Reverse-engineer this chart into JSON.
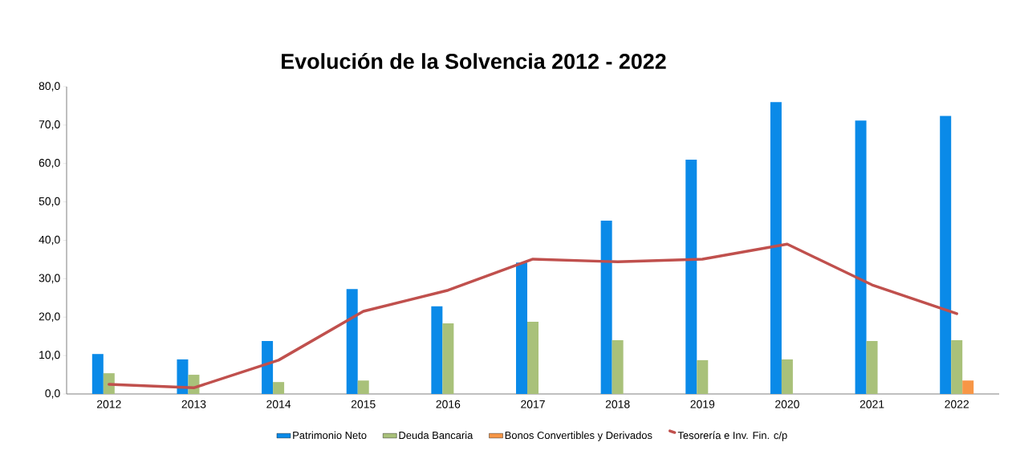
{
  "chart_data": {
    "type": "bar",
    "title": "Evolución de la Solvencia 2012 - 2022",
    "categories": [
      "2012",
      "2013",
      "2014",
      "2015",
      "2016",
      "2017",
      "2018",
      "2019",
      "2020",
      "2021",
      "2022"
    ],
    "series": [
      {
        "name": "Patrimonio Neto",
        "color": "#0a8ae8",
        "values": [
          10.4,
          9.0,
          13.8,
          27.3,
          22.8,
          34.2,
          45.1,
          61.0,
          76.0,
          71.2,
          72.4
        ]
      },
      {
        "name": "Deuda Bancaria",
        "color": "#a9c17a",
        "values": [
          5.4,
          5.0,
          3.1,
          3.5,
          18.4,
          18.8,
          14.0,
          8.8,
          9.0,
          13.8,
          14.0
        ]
      },
      {
        "name": "Bonos Convertibles y Derivados",
        "color": "#f79646",
        "values": [
          null,
          null,
          null,
          null,
          null,
          null,
          null,
          null,
          null,
          null,
          3.5
        ]
      },
      {
        "name": "Tesorería e Inv. Fin. c/p",
        "type": "line",
        "color": "#c0504d",
        "values": [
          2.5,
          1.6,
          8.8,
          21.5,
          27.0,
          35.1,
          34.4,
          35.1,
          39.0,
          28.4,
          20.9
        ]
      }
    ],
    "ylim": [
      0,
      80
    ],
    "yticks": [
      {
        "value": 0,
        "label": "0,0"
      },
      {
        "value": 10,
        "label": "10,0"
      },
      {
        "value": 20,
        "label": "20,0"
      },
      {
        "value": 30,
        "label": "30,0"
      },
      {
        "value": 40,
        "label": "40,0"
      },
      {
        "value": 50,
        "label": "50,0"
      },
      {
        "value": 60,
        "label": "60,0"
      },
      {
        "value": 70,
        "label": "70,0"
      },
      {
        "value": 80,
        "label": "80,0"
      }
    ],
    "legend": "bottom"
  }
}
